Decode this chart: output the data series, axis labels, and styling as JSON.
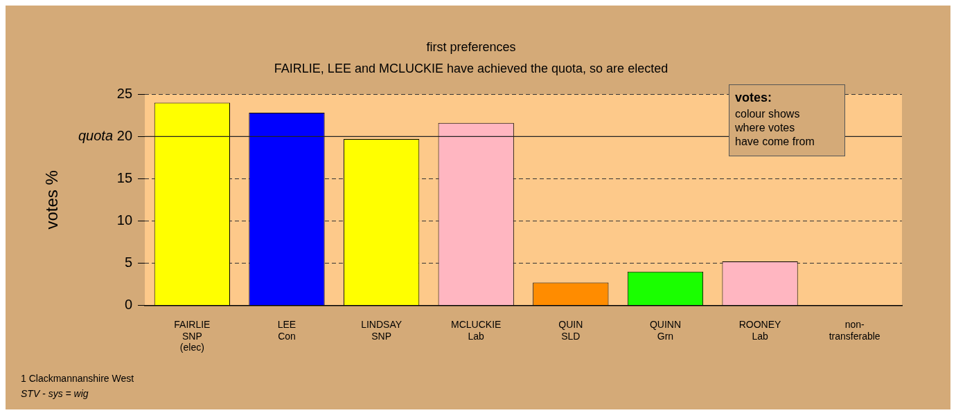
{
  "chart_data": {
    "type": "bar",
    "title": "first preferences",
    "subtitle": "FAIRLIE, LEE and MCLUCKIE have achieved the quota, so are elected",
    "ylabel": "votes %",
    "categories": [
      "FAIRLIE\nSNP\n(elec)",
      "LEE\nCon",
      "LINDSAY\nSNP",
      "MCLUCKIE\nLab",
      "QUIN\nSLD",
      "QUINN\nGrn",
      "ROONEY\nLab",
      "non-\ntransferable"
    ],
    "values": [
      24.0,
      22.8,
      19.7,
      21.6,
      2.7,
      4.0,
      5.2,
      0
    ],
    "colors": [
      "#ffff00",
      "#0000ff",
      "#ffff00",
      "#ffb6c1",
      "#ff8c00",
      "#1aff00",
      "#ffb6c1",
      "#ffb6c1"
    ],
    "ylim": [
      0,
      25
    ],
    "yticks": [
      0,
      5,
      10,
      15,
      20,
      25
    ],
    "grid": "y",
    "ref_lines": [
      {
        "axis": "y",
        "value": 20,
        "label": "quota",
        "color": "#222222",
        "line_style": "solid"
      }
    ],
    "annotations": [
      "votes:",
      "colour shows\nwhere votes\nhave come from",
      "1 Clackmannanshire West",
      "STV - sys = wig"
    ]
  }
}
